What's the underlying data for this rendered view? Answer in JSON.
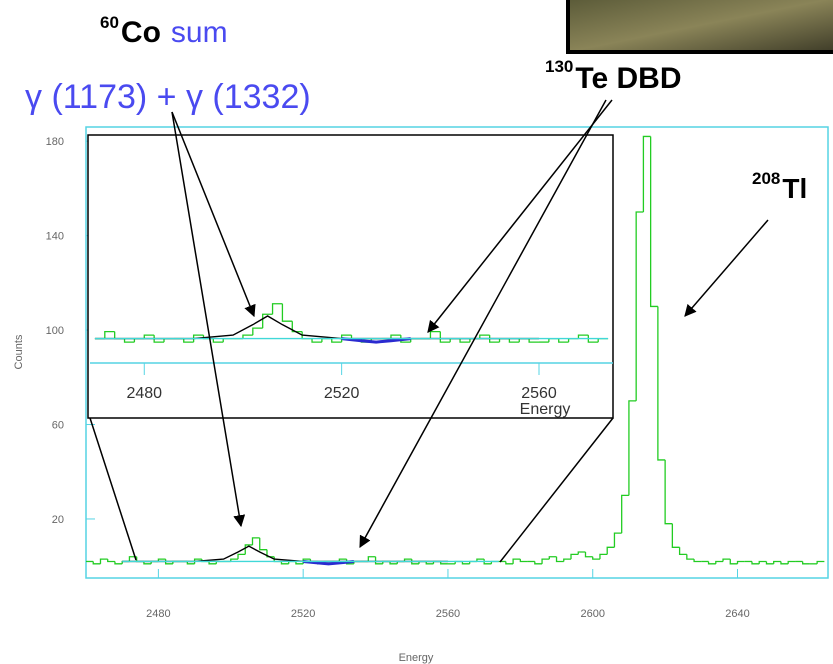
{
  "chart_data": {
    "type": "histogram",
    "xlabel": "Energy",
    "ylabel": "Counts",
    "xlim": [
      2460,
      2665
    ],
    "ylim": [
      -5,
      186
    ],
    "xticks": [
      2480,
      2520,
      2560,
      2600,
      2640
    ],
    "yticks": [
      20,
      60,
      100,
      140,
      180
    ],
    "color": "#22cc22",
    "axis_color": "#55d4e4",
    "bins": [
      2460,
      2462,
      2464,
      2466,
      2468,
      2470,
      2472,
      2474,
      2476,
      2478,
      2480,
      2482,
      2484,
      2486,
      2488,
      2490,
      2492,
      2494,
      2496,
      2498,
      2500,
      2502,
      2504,
      2506,
      2508,
      2510,
      2512,
      2514,
      2516,
      2518,
      2520,
      2522,
      2524,
      2526,
      2528,
      2530,
      2532,
      2534,
      2536,
      2538,
      2540,
      2542,
      2544,
      2546,
      2548,
      2550,
      2552,
      2554,
      2556,
      2558,
      2560,
      2562,
      2564,
      2566,
      2568,
      2570,
      2572,
      2574,
      2576,
      2578,
      2580,
      2582,
      2584,
      2586,
      2588,
      2590,
      2592,
      2594,
      2596,
      2598,
      2600,
      2602,
      2604,
      2606,
      2608,
      2610,
      2612,
      2614,
      2616,
      2618,
      2620,
      2622,
      2624,
      2626,
      2628,
      2630,
      2632,
      2634,
      2636,
      2638,
      2640,
      2642,
      2644,
      2646,
      2648,
      2650,
      2652,
      2654,
      2656,
      2658,
      2660,
      2662,
      2664
    ],
    "values": [
      2,
      1,
      3,
      2,
      1,
      2,
      4,
      2,
      1,
      2,
      3,
      1,
      2,
      2,
      1,
      3,
      2,
      1,
      2,
      2,
      3,
      5,
      9,
      12,
      7,
      4,
      2,
      1,
      2,
      1,
      3,
      2,
      1,
      2,
      2,
      3,
      1,
      2,
      2,
      4,
      1,
      2,
      1,
      2,
      3,
      1,
      2,
      1,
      2,
      1,
      1,
      2,
      1,
      2,
      3,
      1,
      2,
      2,
      1,
      3,
      2,
      2,
      1,
      3,
      4,
      2,
      3,
      5,
      6,
      4,
      3,
      5,
      8,
      14,
      30,
      70,
      150,
      182,
      110,
      45,
      18,
      8,
      5,
      3,
      2,
      2,
      1,
      2,
      3,
      1,
      2,
      2,
      1,
      2,
      1,
      2,
      1,
      2,
      2,
      1,
      1,
      2
    ],
    "fits": [
      {
        "color": "#000000",
        "x": [
          2470,
          2490,
          2498,
          2502,
          2505,
          2508,
          2512,
          2520,
          2540,
          2560
        ],
        "values": [
          2,
          2,
          3,
          6,
          8.5,
          6,
          3,
          2,
          2,
          2
        ]
      },
      {
        "color": "#2a2ad0",
        "x": [
          2520,
          2524,
          2527,
          2530,
          2534
        ],
        "values": [
          2,
          1.4,
          1,
          1.4,
          2
        ]
      },
      {
        "color": "#40d8d8",
        "x": [
          2470,
          2574
        ],
        "values": [
          2,
          2
        ]
      }
    ],
    "inset": {
      "xlim": [
        2469,
        2575
      ],
      "ylim": [
        -5,
        59
      ],
      "xticks": [
        2480,
        2520,
        2560
      ],
      "xlabel": "Energy"
    },
    "annotations": [
      {
        "sup": "60",
        "text": "Co",
        "note": "sum"
      },
      {
        "text": "γ (1173) + γ (1332)"
      },
      {
        "sup": "130",
        "text": "Te DBD"
      },
      {
        "sup": "208",
        "text": "Tl"
      }
    ]
  }
}
